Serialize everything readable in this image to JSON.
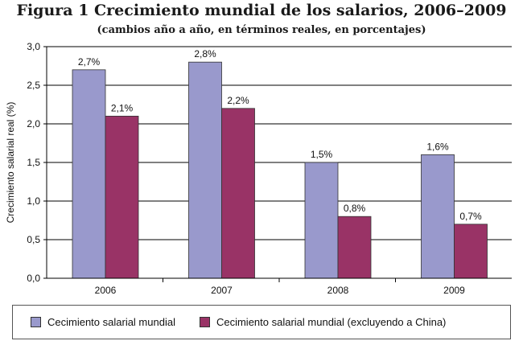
{
  "figure": {
    "title": "Figura 1   Crecimiento mundial de los salarios, 2006–2009",
    "subtitle": "(cambios año a año, en términos reales, en porcentajes)"
  },
  "chart_data": {
    "type": "bar",
    "categories": [
      "2006",
      "2007",
      "2008",
      "2009"
    ],
    "series": [
      {
        "name": "Cecimiento salarial mundial",
        "values": [
          2.7,
          2.8,
          1.5,
          1.6
        ],
        "labels": [
          "2,7%",
          "2,8%",
          "1,5%",
          "1,6%"
        ],
        "color": "#9999cc"
      },
      {
        "name": "Cecimiento salarial mundial (excluyendo a China)",
        "values": [
          2.1,
          2.2,
          0.8,
          0.7
        ],
        "labels": [
          "2,1%",
          "2,2%",
          "0,8%",
          "0,7%"
        ],
        "color": "#993366"
      }
    ],
    "ylabel": "Crecimiento salarial real (%)",
    "xlabel": "",
    "ylim": [
      0,
      3
    ],
    "yticks": [
      0,
      0.5,
      1,
      1.5,
      2,
      2.5,
      3
    ],
    "ytick_labels": [
      "0,0",
      "0,5",
      "1,0",
      "1,5",
      "2,0",
      "2,5",
      "3,0"
    ],
    "grid": true,
    "legend_position": "bottom",
    "plot_background": "#ffffff"
  }
}
